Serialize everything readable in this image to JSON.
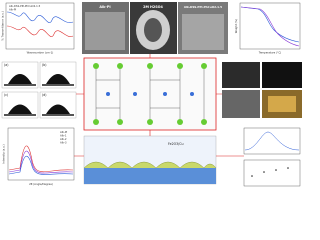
{
  "panels": {
    "ftir": {
      "legend": [
        "Alk-DSS-PPi-PhCuO2-1.5",
        "Alk-PI"
      ],
      "x_label": "Wavenumber (cm-1)",
      "y_label": "% Transmittance (a.u.)"
    },
    "photos": {
      "labels": [
        "Alk-PI",
        "2M H2SO4",
        "Alk-DSS-PPi-PhCuO2-1.5"
      ]
    },
    "tga": {
      "x_label": "Temperature (°C)",
      "y_label": "Weight (%)"
    },
    "droplets": {
      "labels": [
        "(a)",
        "(b)",
        "(c)",
        "(d)"
      ]
    },
    "xrd": {
      "legend": [
        "Alk-PI",
        "Alk-1",
        "Alk-2",
        "Alk-3"
      ],
      "x_label": "2θ (Angle/Degree)",
      "y_label": "Intensity (a.u.)"
    },
    "surface": {
      "label": "Fe2O3/Cu"
    }
  }
}
